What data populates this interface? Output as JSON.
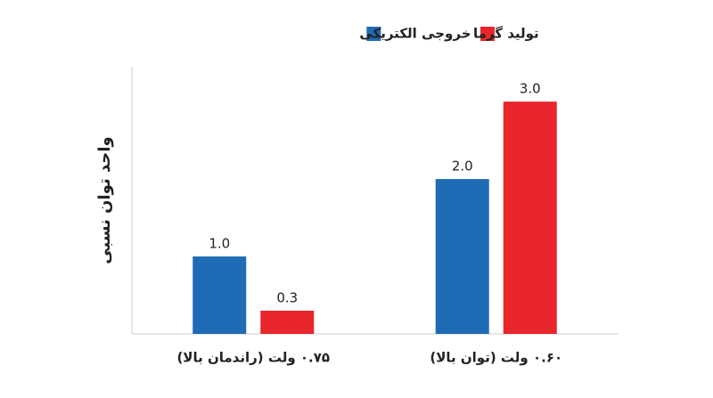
{
  "chart_data": {
    "type": "bar",
    "y_label": "واحد توان نسبی",
    "categories": [
      "۰.۷۵ ولت (راندمان بالا)",
      "۰.۶۰ ولت (توان بالا)"
    ],
    "series": [
      {
        "name": "خروجی الکتریکی",
        "color": "#1f6bb5",
        "values": [
          1.0,
          2.0
        ],
        "value_labels": [
          "1.0",
          "2.0"
        ]
      },
      {
        "name": "تولید گرما",
        "color": "#e8262b",
        "values": [
          0.3,
          3.0
        ],
        "value_labels": [
          "0.3",
          "3.0"
        ]
      }
    ],
    "ylim": [
      0,
      3.45
    ]
  }
}
